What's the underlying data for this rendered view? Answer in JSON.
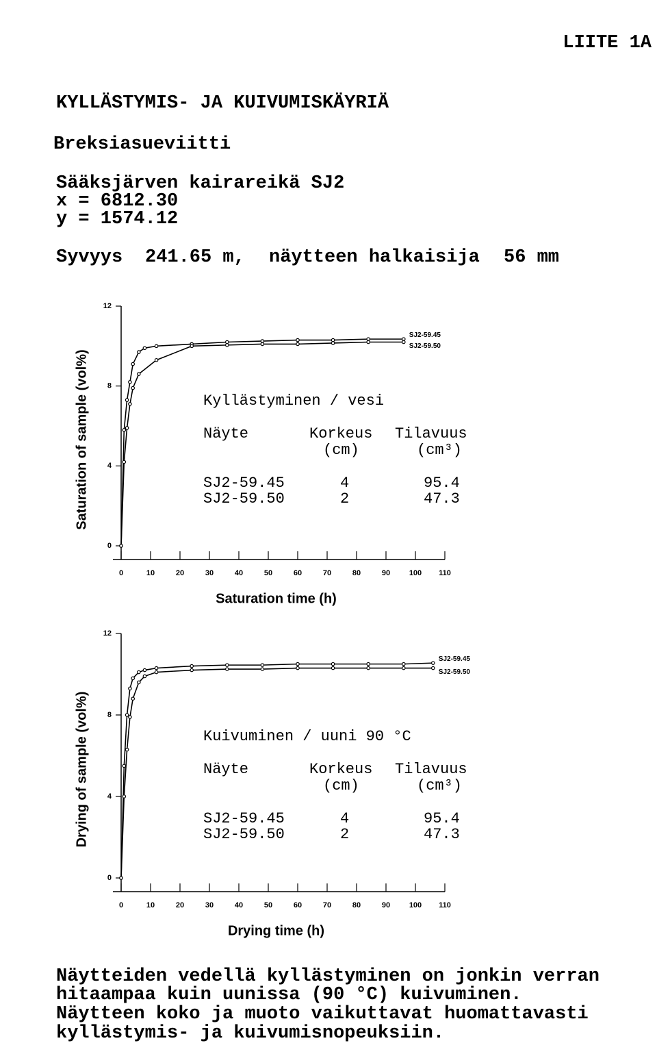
{
  "header": {
    "appendix": "LIITE 1A",
    "title": "KYLLÄSTYMIS- JA KUIVUMISKÄYRIÄ",
    "rock": "Breksiasueviitti",
    "location": [
      "Sääksjärven kairareikä SJ2",
      "x = 6812.30",
      "y = 1574.12"
    ],
    "depth": [
      "Syvyys",
      "241.65 m,",
      "näytteen halkaisija",
      "56 mm"
    ]
  },
  "chart_data": [
    {
      "type": "line",
      "y_label": "Saturation of sample (vol%)",
      "x_label": "Saturation time (h)",
      "xlim": [
        0,
        110
      ],
      "xticks": [
        0,
        10,
        20,
        30,
        40,
        50,
        60,
        70,
        80,
        90,
        100,
        110
      ],
      "ylim": [
        0,
        12
      ],
      "yticks": [
        0,
        4,
        8,
        12
      ],
      "color": "#000000",
      "series": [
        {
          "name": "SJ2-59.45",
          "x": [
            0,
            1,
            2,
            3,
            4,
            6,
            8,
            12,
            24,
            36,
            48,
            60,
            72,
            84,
            96
          ],
          "values": [
            0,
            5.8,
            7.3,
            8.2,
            9.1,
            9.7,
            9.9,
            10.0,
            10.1,
            10.2,
            10.25,
            10.3,
            10.3,
            10.35,
            10.35
          ]
        },
        {
          "name": "SJ2-59.50",
          "x": [
            0,
            1,
            2,
            3,
            4,
            6,
            12,
            24,
            36,
            48,
            60,
            72,
            84,
            96
          ],
          "values": [
            0,
            4.2,
            5.9,
            7.1,
            7.9,
            8.6,
            9.3,
            10.0,
            10.05,
            10.1,
            10.1,
            10.15,
            10.2,
            10.2
          ]
        }
      ],
      "annotation": {
        "title": "Kyllästyminen / vesi",
        "columns": [
          "Näyte",
          "Korkeus",
          "Tilavuus"
        ],
        "units": [
          "(cm)",
          "(cm³)"
        ],
        "rows": [
          [
            "SJ2-59.45",
            4,
            95.4
          ],
          [
            "SJ2-59.50",
            2,
            47.3
          ]
        ]
      }
    },
    {
      "type": "line",
      "y_label": "Drying of sample (vol%)",
      "x_label": "Drying time (h)",
      "xlim": [
        0,
        110
      ],
      "xticks": [
        0,
        10,
        20,
        30,
        40,
        50,
        60,
        70,
        80,
        90,
        100,
        110
      ],
      "ylim": [
        0,
        12
      ],
      "yticks": [
        0,
        4,
        8,
        12
      ],
      "color": "#000000",
      "series": [
        {
          "name": "SJ2-59.45",
          "x": [
            0,
            1,
            2,
            3,
            4,
            6,
            8,
            12,
            24,
            36,
            48,
            60,
            72,
            84,
            96,
            106
          ],
          "values": [
            0,
            5.5,
            8.0,
            9.3,
            9.8,
            10.1,
            10.2,
            10.3,
            10.4,
            10.45,
            10.45,
            10.5,
            10.5,
            10.5,
            10.5,
            10.55
          ]
        },
        {
          "name": "SJ2-59.50",
          "x": [
            0,
            1,
            2,
            3,
            4,
            6,
            8,
            12,
            24,
            36,
            48,
            60,
            72,
            84,
            96,
            106
          ],
          "values": [
            0,
            4.0,
            6.3,
            7.9,
            8.8,
            9.6,
            9.9,
            10.1,
            10.2,
            10.25,
            10.25,
            10.3,
            10.3,
            10.3,
            10.3,
            10.3
          ]
        }
      ],
      "annotation": {
        "title": "Kuivuminen / uuni 90 °C",
        "columns": [
          "Näyte",
          "Korkeus",
          "Tilavuus"
        ],
        "units": [
          "(cm)",
          "(cm³)"
        ],
        "rows": [
          [
            "SJ2-59.45",
            4,
            95.4
          ],
          [
            "SJ2-59.50",
            2,
            47.3
          ]
        ]
      }
    }
  ],
  "footer": [
    "Näytteiden vedellä kyllästyminen on jonkin verran",
    "hitaampaa kuin uunissa (90 °C) kuivuminen.",
    "Näytteen koko ja muoto vaikuttavat huomattavasti",
    "kyllästymis- ja kuivumisnopeuksiin."
  ]
}
